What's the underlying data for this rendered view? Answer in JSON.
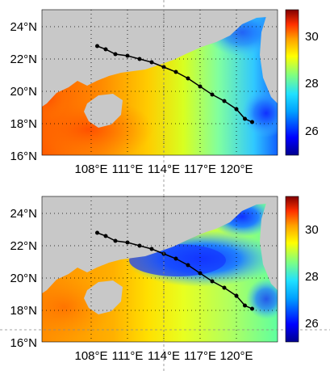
{
  "panels": [
    {
      "id": "top",
      "y_tick_labels": [
        "24°N",
        "22°N",
        "20°N",
        "18°N",
        "16°N"
      ],
      "x_tick_labels": [
        "108°E",
        "111°E",
        "114°E",
        "117°E",
        "120°E"
      ],
      "colorbar_labels": [
        "30",
        "28",
        "26"
      ]
    },
    {
      "id": "bottom",
      "y_tick_labels": [
        "24°N",
        "22°N",
        "20°N",
        "18°N",
        "16°N"
      ],
      "x_tick_labels": [
        "108°E",
        "111°E",
        "114°E",
        "117°E",
        "120°E"
      ],
      "colorbar_labels": [
        "30",
        "28",
        "26"
      ]
    }
  ],
  "track": {
    "color": "#000000",
    "points": [
      [
        108.5,
        22.8
      ],
      [
        109.2,
        22.6
      ],
      [
        110.0,
        22.3
      ],
      [
        111.0,
        22.2
      ],
      [
        112.0,
        22.0
      ],
      [
        113.0,
        21.8
      ],
      [
        114.0,
        21.5
      ],
      [
        115.0,
        21.2
      ],
      [
        116.0,
        20.8
      ],
      [
        117.0,
        20.3
      ],
      [
        118.0,
        19.8
      ],
      [
        119.0,
        19.4
      ],
      [
        120.0,
        18.9
      ],
      [
        120.7,
        18.3
      ],
      [
        121.3,
        18.1
      ]
    ]
  },
  "colorbar": {
    "min": 25,
    "max": 31,
    "colors": [
      "#00008f",
      "#0000ff",
      "#00a0ff",
      "#20e0ff",
      "#80ff80",
      "#ffff00",
      "#ffa000",
      "#ff3000",
      "#800000"
    ]
  },
  "land_color": "#c8c8c8"
}
